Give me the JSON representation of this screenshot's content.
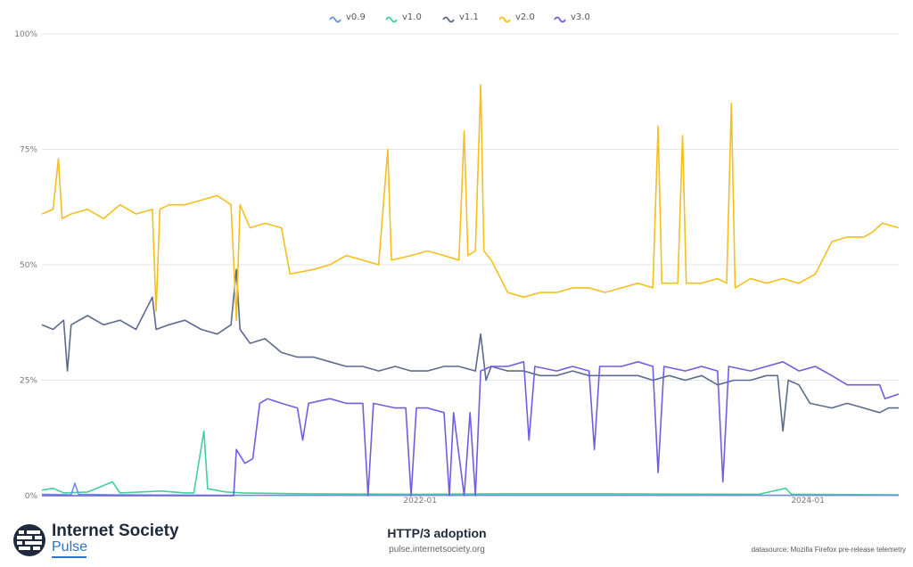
{
  "chart_data": {
    "type": "line",
    "title": "HTTP/3 adoption",
    "xlabel": "",
    "ylabel": "",
    "ylim": [
      0,
      100
    ],
    "y_ticks": [
      "0%",
      "25%",
      "50%",
      "75%",
      "100%"
    ],
    "x_ticks": [
      {
        "date": "2022-01-01",
        "label": "2022-01"
      },
      {
        "date": "2024-01-01",
        "label": "2024-01"
      }
    ],
    "xlim": [
      "2020-01-20",
      "2024-06-20"
    ],
    "grid": true,
    "legend": "top",
    "series": [
      {
        "name": "v0.9",
        "color": "#6b8fe0",
        "points": [
          [
            "2020-01-20",
            0.3
          ],
          [
            "2020-03-15",
            0.2
          ],
          [
            "2020-03-22",
            2.7
          ],
          [
            "2020-03-29",
            0.3
          ],
          [
            "2020-06-01",
            0.2
          ],
          [
            "2021-01-01",
            0.1
          ],
          [
            "2022-01-01",
            0.1
          ],
          [
            "2023-01-01",
            0.1
          ],
          [
            "2024-06-20",
            0.1
          ]
        ]
      },
      {
        "name": "v1.0",
        "color": "#3fd19a",
        "points": [
          [
            "2020-01-20",
            1.2
          ],
          [
            "2020-02-10",
            1.6
          ],
          [
            "2020-03-01",
            0.6
          ],
          [
            "2020-04-15",
            0.8
          ],
          [
            "2020-06-01",
            3.0
          ],
          [
            "2020-06-15",
            0.6
          ],
          [
            "2020-09-01",
            1.0
          ],
          [
            "2020-10-15",
            0.6
          ],
          [
            "2020-11-01",
            0.6
          ],
          [
            "2020-11-20",
            14.0
          ],
          [
            "2020-11-27",
            1.5
          ],
          [
            "2021-01-01",
            0.8
          ],
          [
            "2021-02-01",
            0.6
          ],
          [
            "2021-06-01",
            0.4
          ],
          [
            "2022-01-01",
            0.3
          ],
          [
            "2022-06-01",
            0.4
          ],
          [
            "2023-01-01",
            0.4
          ],
          [
            "2023-10-01",
            0.3
          ],
          [
            "2023-11-20",
            1.6
          ],
          [
            "2023-12-01",
            0.3
          ],
          [
            "2024-06-20",
            0.2
          ]
        ]
      },
      {
        "name": "v1.1",
        "color": "#5b6b8c",
        "points": [
          [
            "2020-01-20",
            37
          ],
          [
            "2020-02-10",
            36
          ],
          [
            "2020-03-01",
            38
          ],
          [
            "2020-03-08",
            27
          ],
          [
            "2020-03-15",
            37
          ],
          [
            "2020-04-15",
            39
          ],
          [
            "2020-05-15",
            37
          ],
          [
            "2020-06-15",
            38
          ],
          [
            "2020-07-15",
            36
          ],
          [
            "2020-08-15",
            43
          ],
          [
            "2020-08-22",
            36
          ],
          [
            "2020-09-15",
            37
          ],
          [
            "2020-10-15",
            38
          ],
          [
            "2020-11-15",
            36
          ],
          [
            "2020-12-15",
            35
          ],
          [
            "2021-01-10",
            37
          ],
          [
            "2021-01-20",
            49
          ],
          [
            "2021-01-27",
            36
          ],
          [
            "2021-02-15",
            33
          ],
          [
            "2021-03-15",
            34
          ],
          [
            "2021-04-15",
            31
          ],
          [
            "2021-05-15",
            30
          ],
          [
            "2021-06-15",
            30
          ],
          [
            "2021-07-15",
            29
          ],
          [
            "2021-08-15",
            28
          ],
          [
            "2021-09-15",
            28
          ],
          [
            "2021-10-15",
            27
          ],
          [
            "2021-11-15",
            28
          ],
          [
            "2021-12-15",
            27
          ],
          [
            "2022-01-15",
            27
          ],
          [
            "2022-02-15",
            28
          ],
          [
            "2022-03-15",
            28
          ],
          [
            "2022-04-15",
            27
          ],
          [
            "2022-04-25",
            35
          ],
          [
            "2022-05-05",
            25
          ],
          [
            "2022-05-15",
            28
          ],
          [
            "2022-06-15",
            27
          ],
          [
            "2022-07-15",
            27
          ],
          [
            "2022-08-15",
            26
          ],
          [
            "2022-09-15",
            26
          ],
          [
            "2022-10-15",
            27
          ],
          [
            "2022-11-15",
            26
          ],
          [
            "2022-12-15",
            26
          ],
          [
            "2023-01-15",
            26
          ],
          [
            "2023-02-15",
            26
          ],
          [
            "2023-03-15",
            25
          ],
          [
            "2023-04-15",
            26
          ],
          [
            "2023-05-15",
            25
          ],
          [
            "2023-06-15",
            26
          ],
          [
            "2023-07-15",
            24
          ],
          [
            "2023-08-15",
            25
          ],
          [
            "2023-09-15",
            25
          ],
          [
            "2023-10-15",
            26
          ],
          [
            "2023-11-05",
            26
          ],
          [
            "2023-11-15",
            14
          ],
          [
            "2023-11-25",
            25
          ],
          [
            "2023-12-15",
            24
          ],
          [
            "2024-01-05",
            20
          ],
          [
            "2024-02-15",
            19
          ],
          [
            "2024-03-15",
            20
          ],
          [
            "2024-04-15",
            19
          ],
          [
            "2024-05-15",
            18
          ],
          [
            "2024-06-01",
            19
          ],
          [
            "2024-06-20",
            19
          ]
        ]
      },
      {
        "name": "v2.0",
        "color": "#f4bf1f",
        "points": [
          [
            "2020-01-20",
            61
          ],
          [
            "2020-02-10",
            62
          ],
          [
            "2020-02-20",
            73
          ],
          [
            "2020-02-27",
            60
          ],
          [
            "2020-03-15",
            61
          ],
          [
            "2020-04-15",
            62
          ],
          [
            "2020-05-15",
            60
          ],
          [
            "2020-06-15",
            63
          ],
          [
            "2020-07-15",
            61
          ],
          [
            "2020-08-15",
            62
          ],
          [
            "2020-08-22",
            40
          ],
          [
            "2020-08-29",
            62
          ],
          [
            "2020-09-15",
            63
          ],
          [
            "2020-10-15",
            63
          ],
          [
            "2020-11-15",
            64
          ],
          [
            "2020-12-15",
            65
          ],
          [
            "2021-01-10",
            63
          ],
          [
            "2021-01-20",
            38
          ],
          [
            "2021-01-27",
            63
          ],
          [
            "2021-02-15",
            58
          ],
          [
            "2021-03-15",
            59
          ],
          [
            "2021-04-15",
            58
          ],
          [
            "2021-05-01",
            48
          ],
          [
            "2021-06-15",
            49
          ],
          [
            "2021-07-15",
            50
          ],
          [
            "2021-08-15",
            52
          ],
          [
            "2021-09-15",
            51
          ],
          [
            "2021-10-15",
            50
          ],
          [
            "2021-11-01",
            75
          ],
          [
            "2021-11-08",
            51
          ],
          [
            "2021-12-15",
            52
          ],
          [
            "2022-01-15",
            53
          ],
          [
            "2022-02-15",
            52
          ],
          [
            "2022-03-15",
            51
          ],
          [
            "2022-03-25",
            79
          ],
          [
            "2022-04-01",
            52
          ],
          [
            "2022-04-15",
            53
          ],
          [
            "2022-04-25",
            89
          ],
          [
            "2022-05-01",
            53
          ],
          [
            "2022-05-15",
            51
          ],
          [
            "2022-06-15",
            44
          ],
          [
            "2022-07-15",
            43
          ],
          [
            "2022-08-15",
            44
          ],
          [
            "2022-09-15",
            44
          ],
          [
            "2022-10-15",
            45
          ],
          [
            "2022-11-15",
            45
          ],
          [
            "2022-12-15",
            44
          ],
          [
            "2023-01-15",
            45
          ],
          [
            "2023-02-15",
            46
          ],
          [
            "2023-03-15",
            45
          ],
          [
            "2023-03-25",
            80
          ],
          [
            "2023-04-01",
            46
          ],
          [
            "2023-05-01",
            46
          ],
          [
            "2023-05-10",
            78
          ],
          [
            "2023-05-17",
            46
          ],
          [
            "2023-06-15",
            46
          ],
          [
            "2023-07-15",
            47
          ],
          [
            "2023-08-01",
            46
          ],
          [
            "2023-08-10",
            85
          ],
          [
            "2023-08-17",
            45
          ],
          [
            "2023-09-15",
            47
          ],
          [
            "2023-10-15",
            46
          ],
          [
            "2023-11-15",
            47
          ],
          [
            "2023-12-15",
            46
          ],
          [
            "2024-01-15",
            48
          ],
          [
            "2024-02-15",
            55
          ],
          [
            "2024-03-15",
            56
          ],
          [
            "2024-04-15",
            56
          ],
          [
            "2024-05-01",
            57
          ],
          [
            "2024-05-20",
            59
          ],
          [
            "2024-06-20",
            58
          ]
        ]
      },
      {
        "name": "v3.0",
        "color": "#6d5fe1",
        "points": [
          [
            "2020-01-20",
            0
          ],
          [
            "2021-01-15",
            0
          ],
          [
            "2021-01-20",
            10
          ],
          [
            "2021-02-05",
            7
          ],
          [
            "2021-02-20",
            8
          ],
          [
            "2021-03-05",
            20
          ],
          [
            "2021-03-20",
            21
          ],
          [
            "2021-04-15",
            20
          ],
          [
            "2021-05-15",
            19
          ],
          [
            "2021-05-25",
            12
          ],
          [
            "2021-06-05",
            20
          ],
          [
            "2021-07-15",
            21
          ],
          [
            "2021-08-15",
            20
          ],
          [
            "2021-09-15",
            20
          ],
          [
            "2021-09-25",
            0
          ],
          [
            "2021-10-05",
            20
          ],
          [
            "2021-11-15",
            19
          ],
          [
            "2021-12-05",
            19
          ],
          [
            "2021-12-15",
            0
          ],
          [
            "2021-12-25",
            19
          ],
          [
            "2022-01-15",
            19
          ],
          [
            "2022-02-15",
            18
          ],
          [
            "2022-02-25",
            0
          ],
          [
            "2022-03-05",
            18
          ],
          [
            "2022-03-25",
            0
          ],
          [
            "2022-04-05",
            18
          ],
          [
            "2022-04-15",
            0
          ],
          [
            "2022-04-25",
            27
          ],
          [
            "2022-05-15",
            28
          ],
          [
            "2022-06-15",
            28
          ],
          [
            "2022-07-15",
            29
          ],
          [
            "2022-07-25",
            12
          ],
          [
            "2022-08-05",
            28
          ],
          [
            "2022-09-15",
            27
          ],
          [
            "2022-10-15",
            28
          ],
          [
            "2022-11-15",
            27
          ],
          [
            "2022-11-25",
            10
          ],
          [
            "2022-12-05",
            28
          ],
          [
            "2023-01-15",
            28
          ],
          [
            "2023-02-15",
            29
          ],
          [
            "2023-03-15",
            28
          ],
          [
            "2023-03-25",
            5
          ],
          [
            "2023-04-05",
            28
          ],
          [
            "2023-05-15",
            27
          ],
          [
            "2023-06-15",
            28
          ],
          [
            "2023-07-15",
            27
          ],
          [
            "2023-07-25",
            3
          ],
          [
            "2023-08-05",
            28
          ],
          [
            "2023-09-15",
            27
          ],
          [
            "2023-10-15",
            28
          ],
          [
            "2023-11-15",
            29
          ],
          [
            "2023-12-15",
            27
          ],
          [
            "2024-01-15",
            28
          ],
          [
            "2024-02-15",
            26
          ],
          [
            "2024-03-15",
            24
          ],
          [
            "2024-04-15",
            24
          ],
          [
            "2024-05-15",
            24
          ],
          [
            "2024-05-25",
            21
          ],
          [
            "2024-06-20",
            22
          ]
        ]
      }
    ]
  },
  "footer": {
    "brand_name": "Internet Society",
    "brand_sub": "Pulse",
    "title": "HTTP/3 adoption",
    "url": "pulse.internetsociety.org",
    "source": "datasource: Mozilla Firefox pre-release telemetry"
  }
}
